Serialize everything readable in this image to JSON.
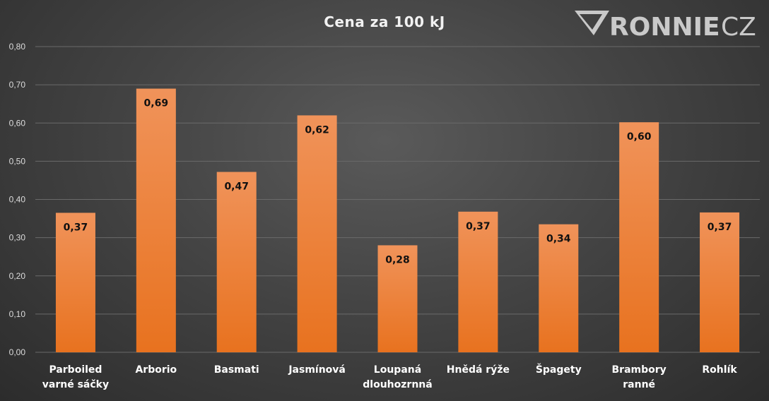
{
  "logo": {
    "brand": "RONNIE",
    "suffix": "CZ"
  },
  "chart_data": {
    "type": "bar",
    "title": "Cena za 100 kJ",
    "xlabel": "",
    "ylabel": "",
    "categories": [
      "Parboiled varné sáčky",
      "Arborio",
      "Basmati",
      "Jasmínová",
      "Loupaná dlouhozrnná",
      "Hnědá rýže",
      "Špagety",
      "Brambory ranné",
      "Rohlík"
    ],
    "category_lines": [
      [
        "Parboiled",
        "varné sáčky"
      ],
      [
        "Arborio"
      ],
      [
        "Basmati"
      ],
      [
        "Jasmínová"
      ],
      [
        "Loupaná",
        "dlouhozrnná"
      ],
      [
        "Hnědá rýže"
      ],
      [
        "Špagety"
      ],
      [
        "Brambory",
        "ranné"
      ],
      [
        "Rohlík"
      ]
    ],
    "values": [
      0.365,
      0.69,
      0.472,
      0.62,
      0.28,
      0.368,
      0.335,
      0.602,
      0.366
    ],
    "data_labels": [
      "0,37",
      "0,69",
      "0,47",
      "0,62",
      "0,28",
      "0,37",
      "0,34",
      "0,60",
      "0,37"
    ],
    "ylim": [
      0,
      0.8
    ],
    "yticks": [
      0,
      0.1,
      0.2,
      0.3,
      0.4,
      0.5,
      0.6,
      0.7,
      0.8
    ],
    "ytick_labels": [
      "0,00",
      "0,10",
      "0,20",
      "0,30",
      "0,40",
      "0,50",
      "0,60",
      "0,70",
      "0,80"
    ],
    "grid": true,
    "legend": "none",
    "colors": {
      "bar_top": "#f0935a",
      "bar_bottom": "#e8721f",
      "grid": "#6a6a6a",
      "text": "#ffffff"
    }
  }
}
